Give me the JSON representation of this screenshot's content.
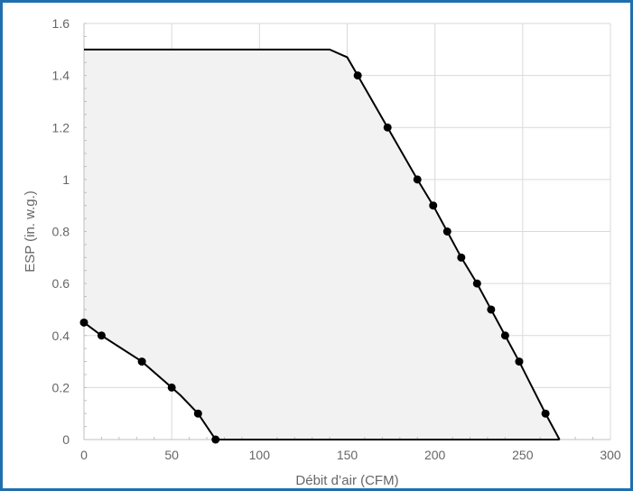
{
  "chart_data": {
    "type": "area",
    "title": "",
    "xlabel": "Débit d’air (CFM)",
    "ylabel": "ESP (in. w.g.)",
    "xlim": [
      0,
      300
    ],
    "ylim": [
      0,
      1.6
    ],
    "x_ticks": [
      "0",
      "50",
      "100",
      "150",
      "200",
      "250",
      "300"
    ],
    "y_ticks": [
      "0",
      "0.2",
      "0.4",
      "0.6",
      "0.8",
      "1",
      "1.2",
      "1.4",
      "1.6"
    ],
    "grid": true,
    "legend": "none",
    "colors": {
      "fill": "#f2f2f2",
      "line": "#000000",
      "grid": "#d9d9d9",
      "border": "#1f6fae"
    },
    "series": [
      {
        "role": "upper-boundary",
        "x": [
          0,
          140,
          150,
          156,
          173,
          190,
          199,
          207,
          215,
          224,
          232,
          240,
          248,
          263,
          271
        ],
        "y": [
          1.5,
          1.5,
          1.47,
          1.4,
          1.2,
          1.0,
          0.9,
          0.8,
          0.7,
          0.6,
          0.5,
          0.4,
          0.3,
          0.1,
          0
        ],
        "markers": [
          false,
          false,
          false,
          true,
          true,
          true,
          true,
          true,
          true,
          true,
          true,
          true,
          true,
          true,
          false
        ]
      },
      {
        "role": "lower-boundary",
        "x": [
          0,
          10,
          33,
          50,
          55,
          65,
          75,
          80,
          271
        ],
        "y": [
          0.45,
          0.4,
          0.3,
          0.2,
          0.17,
          0.1,
          0,
          0,
          0
        ],
        "markers": [
          true,
          true,
          true,
          true,
          false,
          true,
          true,
          false,
          false
        ]
      }
    ]
  }
}
